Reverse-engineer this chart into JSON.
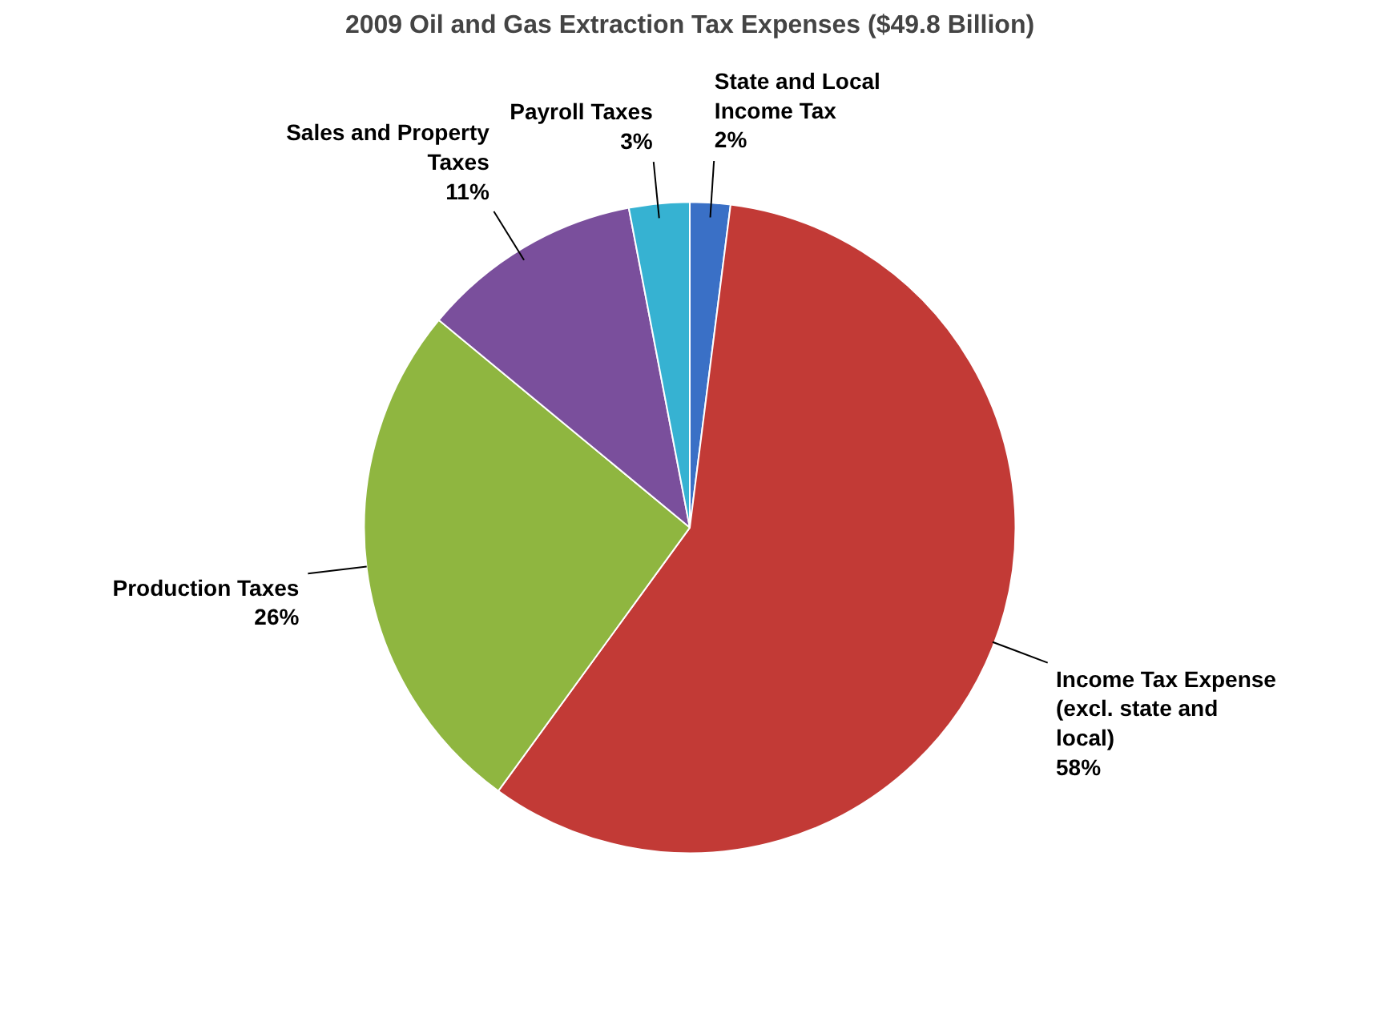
{
  "chart_data": {
    "type": "pie",
    "title": "2009 Oil and Gas Extraction Tax Expenses ($49.8 Billion)",
    "categories": [
      "State and Local Income Tax",
      "Income Tax Expense (excl. state and local)",
      "Production Taxes",
      "Sales and Property Taxes",
      "Payroll Taxes"
    ],
    "values": [
      2,
      58,
      26,
      11,
      3
    ],
    "colors": [
      "#3a70c6",
      "#c23a36",
      "#8fb640",
      "#7a4f9c",
      "#36b2d2"
    ],
    "value_labels": [
      "2%",
      "58%",
      "26%",
      "11%",
      "3%"
    ]
  }
}
